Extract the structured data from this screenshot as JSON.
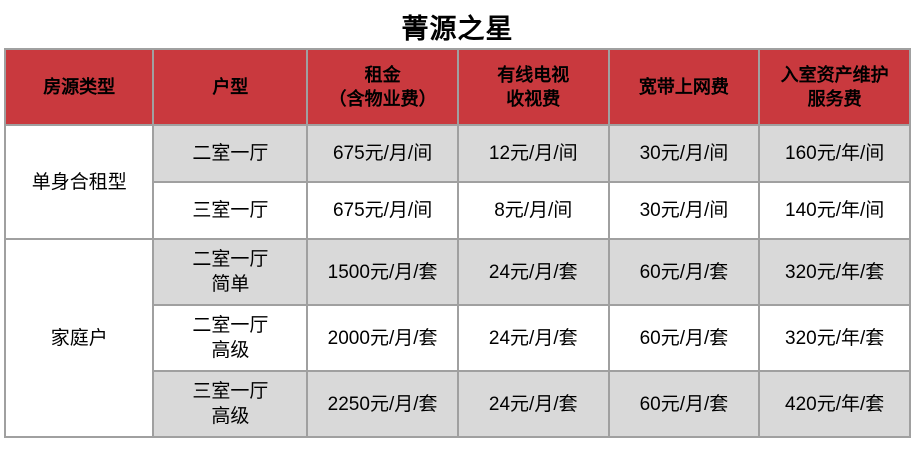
{
  "page_title": "菁源之星",
  "colors": {
    "header_bg": "#c9393e",
    "band_bg": "#d9d9d9",
    "row_bg": "#ffffff",
    "border": "#a0a0a0",
    "text": "#000000"
  },
  "table": {
    "columns": [
      {
        "label": "房源类型"
      },
      {
        "label": "户型"
      },
      {
        "label": "租金\n（含物业费）"
      },
      {
        "label": "有线电视\n收视费"
      },
      {
        "label": "宽带上网费"
      },
      {
        "label": "入室资产维护\n服务费"
      }
    ],
    "groups": [
      {
        "type_label": "单身合租型",
        "rows": [
          {
            "unit": "二室一厅",
            "rent": "675元/月/间",
            "tv_fee": "12元/月/间",
            "internet_fee": "30元/月/间",
            "maintenance_fee": "160元/年/间",
            "shade": "gray"
          },
          {
            "unit": "三室一厅",
            "rent": "675元/月/间",
            "tv_fee": "8元/月/间",
            "internet_fee": "30元/月/间",
            "maintenance_fee": "140元/年/间",
            "shade": "white"
          }
        ]
      },
      {
        "type_label": "家庭户",
        "rows": [
          {
            "unit": "二室一厅\n简单",
            "rent": "1500元/月/套",
            "tv_fee": "24元/月/套",
            "internet_fee": "60元/月/套",
            "maintenance_fee": "320元/年/套",
            "shade": "gray"
          },
          {
            "unit": "二室一厅\n高级",
            "rent": "2000元/月/套",
            "tv_fee": "24元/月/套",
            "internet_fee": "60元/月/套",
            "maintenance_fee": "320元/年/套",
            "shade": "white"
          },
          {
            "unit": "三室一厅\n高级",
            "rent": "2250元/月/套",
            "tv_fee": "24元/月/套",
            "internet_fee": "60元/月/套",
            "maintenance_fee": "420元/年/套",
            "shade": "gray"
          }
        ]
      }
    ]
  }
}
